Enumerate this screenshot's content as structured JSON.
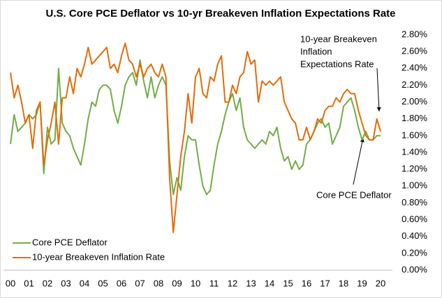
{
  "chart_data": {
    "type": "line",
    "title": "U.S. Core PCE Deflator vs 10-yr Breakeven Inflation Expectations Rate",
    "annotations": [
      {
        "lines": [
          "10-year Breakeven",
          "Inflation",
          "Expectations Rate"
        ]
      },
      {
        "lines": [
          "Core PCE Deflator"
        ]
      }
    ],
    "x": [
      2000,
      2000.2,
      2000.4,
      2000.6,
      2000.8,
      2001,
      2001.2,
      2001.4,
      2001.6,
      2001.8,
      2002,
      2002.2,
      2002.4,
      2002.6,
      2002.8,
      2003,
      2003.2,
      2003.4,
      2003.6,
      2003.8,
      2004,
      2004.2,
      2004.4,
      2004.6,
      2004.8,
      2005,
      2005.2,
      2005.4,
      2005.6,
      2005.8,
      2006,
      2006.2,
      2006.4,
      2006.6,
      2006.8,
      2007,
      2007.2,
      2007.4,
      2007.6,
      2007.8,
      2008,
      2008.2,
      2008.4,
      2008.6,
      2008.8,
      2009,
      2009.2,
      2009.4,
      2009.6,
      2009.8,
      2010,
      2010.2,
      2010.4,
      2010.6,
      2010.8,
      2011,
      2011.2,
      2011.4,
      2011.6,
      2011.8,
      2012,
      2012.2,
      2012.4,
      2012.6,
      2012.8,
      2013,
      2013.2,
      2013.4,
      2013.6,
      2013.8,
      2014,
      2014.2,
      2014.4,
      2014.6,
      2014.8,
      2015,
      2015.2,
      2015.4,
      2015.6,
      2015.8,
      2016,
      2016.2,
      2016.4,
      2016.6,
      2016.8,
      2017,
      2017.2,
      2017.4,
      2017.6,
      2017.8,
      2018,
      2018.2,
      2018.4,
      2018.6,
      2018.8,
      2019,
      2019.2,
      2019.4,
      2019.6,
      2019.8,
      2020
    ],
    "series": [
      {
        "name": "Core PCE Deflator",
        "color": "#70ad47",
        "values": [
          1.5,
          1.85,
          1.65,
          1.7,
          1.75,
          1.85,
          1.8,
          1.85,
          2.0,
          1.15,
          1.7,
          1.5,
          1.55,
          2.4,
          1.75,
          1.65,
          1.6,
          1.45,
          1.35,
          1.25,
          1.5,
          1.8,
          2.0,
          1.95,
          2.15,
          2.2,
          2.2,
          2.15,
          1.9,
          1.75,
          1.95,
          2.2,
          2.3,
          2.35,
          2.2,
          2.5,
          2.25,
          2.05,
          2.3,
          2.05,
          2.2,
          2.3,
          2.2,
          1.3,
          0.9,
          1.1,
          0.95,
          1.35,
          1.6,
          1.55,
          1.55,
          1.25,
          1.0,
          0.9,
          0.95,
          1.25,
          1.5,
          1.65,
          1.85,
          2.0,
          2.1,
          1.9,
          2.05,
          1.7,
          1.55,
          1.5,
          1.45,
          1.5,
          1.55,
          1.5,
          1.65,
          1.6,
          1.7,
          1.45,
          1.3,
          1.35,
          1.2,
          1.3,
          1.2,
          1.25,
          1.5,
          1.55,
          1.65,
          1.75,
          1.8,
          1.7,
          1.75,
          1.5,
          1.6,
          1.7,
          1.95,
          2.0,
          2.05,
          1.9,
          1.7,
          1.55,
          1.65,
          1.55,
          1.55,
          1.6,
          1.6
        ]
      },
      {
        "name": "10-year Breakeven Inflation Rate",
        "color": "#e36c0a",
        "values": [
          2.35,
          2.05,
          2.2,
          2.0,
          1.75,
          1.85,
          1.45,
          1.9,
          2.0,
          1.25,
          1.55,
          1.75,
          2.0,
          1.5,
          2.05,
          2.05,
          2.3,
          2.1,
          2.4,
          2.3,
          2.45,
          2.65,
          2.45,
          2.5,
          2.55,
          2.6,
          2.65,
          2.4,
          2.45,
          2.35,
          2.55,
          2.7,
          2.5,
          2.45,
          2.3,
          2.45,
          2.3,
          2.4,
          2.45,
          2.35,
          2.3,
          2.45,
          2.3,
          1.1,
          0.45,
          0.9,
          1.35,
          1.65,
          2.1,
          1.75,
          2.3,
          2.4,
          2.1,
          2.05,
          2.3,
          2.25,
          2.45,
          2.55,
          2.0,
          2.0,
          2.2,
          2.1,
          2.3,
          2.35,
          2.6,
          2.45,
          2.5,
          2.0,
          2.25,
          2.2,
          2.25,
          2.2,
          2.25,
          2.3,
          2.0,
          1.9,
          1.8,
          1.75,
          1.55,
          1.55,
          1.7,
          1.55,
          1.65,
          1.8,
          1.75,
          1.9,
          1.95,
          1.95,
          2.05,
          2.0,
          2.1,
          2.15,
          2.1,
          2.1,
          1.9,
          1.75,
          1.6,
          1.55,
          1.55,
          1.8,
          1.65
        ]
      }
    ],
    "xlim": [
      2000,
      2020
    ],
    "xticks": [
      {
        "value": 2000,
        "label": "00"
      },
      {
        "value": 2001,
        "label": "01"
      },
      {
        "value": 2002,
        "label": "02"
      },
      {
        "value": 2003,
        "label": "03"
      },
      {
        "value": 2004,
        "label": "04"
      },
      {
        "value": 2005,
        "label": "05"
      },
      {
        "value": 2006,
        "label": "06"
      },
      {
        "value": 2007,
        "label": "07"
      },
      {
        "value": 2008,
        "label": "08"
      },
      {
        "value": 2009,
        "label": "09"
      },
      {
        "value": 2010,
        "label": "10"
      },
      {
        "value": 2011,
        "label": "11"
      },
      {
        "value": 2012,
        "label": "12"
      },
      {
        "value": 2013,
        "label": "13"
      },
      {
        "value": 2014,
        "label": "14"
      },
      {
        "value": 2015,
        "label": "15"
      },
      {
        "value": 2016,
        "label": "16"
      },
      {
        "value": 2017,
        "label": "17"
      },
      {
        "value": 2018,
        "label": "18"
      },
      {
        "value": 2019,
        "label": "19"
      },
      {
        "value": 2020,
        "label": "20"
      }
    ],
    "ylim": [
      0,
      2.8
    ],
    "yticks": [
      {
        "value": 0,
        "label": "0.00%"
      },
      {
        "value": 0.2,
        "label": "0.20%"
      },
      {
        "value": 0.4,
        "label": "0.40%"
      },
      {
        "value": 0.6,
        "label": "0.60%"
      },
      {
        "value": 0.8,
        "label": "0.80%"
      },
      {
        "value": 1.0,
        "label": "1.00%"
      },
      {
        "value": 1.2,
        "label": "1.20%"
      },
      {
        "value": 1.4,
        "label": "1.40%"
      },
      {
        "value": 1.6,
        "label": "1.60%"
      },
      {
        "value": 1.8,
        "label": "1.80%"
      },
      {
        "value": 2.0,
        "label": "2.00%"
      },
      {
        "value": 2.2,
        "label": "2.20%"
      },
      {
        "value": 2.4,
        "label": "2.40%"
      },
      {
        "value": 2.6,
        "label": "2.60%"
      },
      {
        "value": 2.8,
        "label": "2.80%"
      }
    ],
    "y_axis_side": "right",
    "grid": false,
    "legend": "lower left"
  }
}
